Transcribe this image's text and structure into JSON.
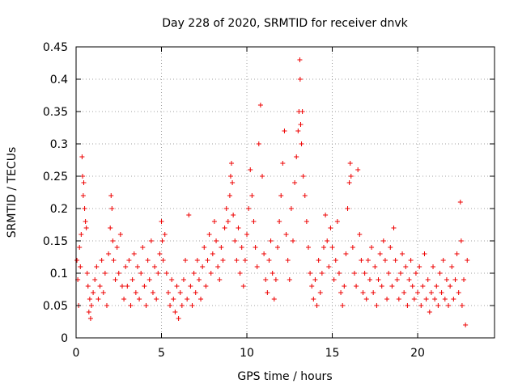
{
  "chart_data": {
    "type": "scatter",
    "title": "Day 228 of 2020, SRMTID for receiver dnvk",
    "xlabel": "GPS time / hours",
    "ylabel": "SRMTID / TECUs",
    "xlim": [
      0,
      24.5
    ],
    "ylim": [
      0,
      0.45
    ],
    "x_ticks": [
      "0",
      "5",
      "10",
      "15",
      "20"
    ],
    "x_tick_values": [
      0,
      5,
      10,
      15,
      20
    ],
    "y_ticks": [
      "0",
      "0.05",
      "0.1",
      "0.15",
      "0.2",
      "0.25",
      "0.3",
      "0.35",
      "0.4",
      "0.45"
    ],
    "y_tick_values": [
      0,
      0.05,
      0.1,
      0.15,
      0.2,
      0.25,
      0.3,
      0.35,
      0.4,
      0.45
    ],
    "grid": true,
    "marker": "+",
    "color": "#ee0000",
    "series": [
      {
        "name": "SRMTID",
        "points": [
          [
            0.05,
            0.12
          ],
          [
            0.1,
            0.09
          ],
          [
            0.15,
            0.05
          ],
          [
            0.2,
            0.14
          ],
          [
            0.25,
            0.11
          ],
          [
            0.3,
            0.16
          ],
          [
            0.35,
            0.28
          ],
          [
            0.38,
            0.25
          ],
          [
            0.42,
            0.22
          ],
          [
            0.45,
            0.24
          ],
          [
            0.5,
            0.2
          ],
          [
            0.55,
            0.18
          ],
          [
            0.6,
            0.17
          ],
          [
            0.65,
            0.1
          ],
          [
            0.7,
            0.08
          ],
          [
            0.75,
            0.04
          ],
          [
            0.8,
            0.06
          ],
          [
            0.85,
            0.03
          ],
          [
            0.9,
            0.05
          ],
          [
            1.0,
            0.07
          ],
          [
            1.1,
            0.09
          ],
          [
            1.2,
            0.11
          ],
          [
            1.3,
            0.06
          ],
          [
            1.4,
            0.08
          ],
          [
            1.5,
            0.12
          ],
          [
            1.6,
            0.07
          ],
          [
            1.7,
            0.1
          ],
          [
            1.8,
            0.05
          ],
          [
            1.9,
            0.13
          ],
          [
            2.0,
            0.17
          ],
          [
            2.05,
            0.22
          ],
          [
            2.1,
            0.2
          ],
          [
            2.15,
            0.15
          ],
          [
            2.2,
            0.12
          ],
          [
            2.3,
            0.09
          ],
          [
            2.4,
            0.14
          ],
          [
            2.5,
            0.1
          ],
          [
            2.6,
            0.16
          ],
          [
            2.7,
            0.08
          ],
          [
            2.8,
            0.06
          ],
          [
            2.9,
            0.11
          ],
          [
            3.0,
            0.08
          ],
          [
            3.1,
            0.12
          ],
          [
            3.2,
            0.05
          ],
          [
            3.3,
            0.09
          ],
          [
            3.4,
            0.13
          ],
          [
            3.5,
            0.07
          ],
          [
            3.6,
            0.11
          ],
          [
            3.7,
            0.06
          ],
          [
            3.8,
            0.1
          ],
          [
            3.9,
            0.14
          ],
          [
            4.0,
            0.08
          ],
          [
            4.1,
            0.05
          ],
          [
            4.2,
            0.12
          ],
          [
            4.3,
            0.09
          ],
          [
            4.4,
            0.15
          ],
          [
            4.5,
            0.07
          ],
          [
            4.6,
            0.11
          ],
          [
            4.7,
            0.06
          ],
          [
            4.8,
            0.1
          ],
          [
            4.9,
            0.13
          ],
          [
            5.0,
            0.18
          ],
          [
            5.05,
            0.15
          ],
          [
            5.1,
            0.12
          ],
          [
            5.2,
            0.16
          ],
          [
            5.3,
            0.1
          ],
          [
            5.4,
            0.07
          ],
          [
            5.5,
            0.05
          ],
          [
            5.6,
            0.09
          ],
          [
            5.7,
            0.06
          ],
          [
            5.8,
            0.04
          ],
          [
            5.9,
            0.08
          ],
          [
            6.0,
            0.03
          ],
          [
            6.1,
            0.07
          ],
          [
            6.2,
            0.05
          ],
          [
            6.3,
            0.09
          ],
          [
            6.4,
            0.12
          ],
          [
            6.5,
            0.06
          ],
          [
            6.6,
            0.19
          ],
          [
            6.7,
            0.08
          ],
          [
            6.8,
            0.05
          ],
          [
            6.9,
            0.1
          ],
          [
            7.0,
            0.07
          ],
          [
            7.1,
            0.12
          ],
          [
            7.2,
            0.09
          ],
          [
            7.3,
            0.06
          ],
          [
            7.4,
            0.11
          ],
          [
            7.5,
            0.14
          ],
          [
            7.6,
            0.08
          ],
          [
            7.7,
            0.12
          ],
          [
            7.8,
            0.16
          ],
          [
            7.9,
            0.1
          ],
          [
            8.0,
            0.13
          ],
          [
            8.1,
            0.18
          ],
          [
            8.2,
            0.15
          ],
          [
            8.3,
            0.11
          ],
          [
            8.4,
            0.09
          ],
          [
            8.5,
            0.14
          ],
          [
            8.6,
            0.12
          ],
          [
            8.7,
            0.17
          ],
          [
            8.8,
            0.2
          ],
          [
            8.9,
            0.18
          ],
          [
            9.0,
            0.22
          ],
          [
            9.05,
            0.25
          ],
          [
            9.1,
            0.27
          ],
          [
            9.15,
            0.24
          ],
          [
            9.2,
            0.19
          ],
          [
            9.3,
            0.15
          ],
          [
            9.4,
            0.12
          ],
          [
            9.5,
            0.17
          ],
          [
            9.6,
            0.1
          ],
          [
            9.7,
            0.14
          ],
          [
            9.8,
            0.08
          ],
          [
            9.9,
            0.12
          ],
          [
            10.0,
            0.16
          ],
          [
            10.1,
            0.2
          ],
          [
            10.2,
            0.26
          ],
          [
            10.3,
            0.22
          ],
          [
            10.4,
            0.18
          ],
          [
            10.5,
            0.14
          ],
          [
            10.6,
            0.11
          ],
          [
            10.7,
            0.3
          ],
          [
            10.8,
            0.36
          ],
          [
            10.9,
            0.25
          ],
          [
            11.0,
            0.13
          ],
          [
            11.1,
            0.09
          ],
          [
            11.2,
            0.07
          ],
          [
            11.3,
            0.12
          ],
          [
            11.4,
            0.15
          ],
          [
            11.5,
            0.1
          ],
          [
            11.6,
            0.06
          ],
          [
            11.7,
            0.09
          ],
          [
            11.8,
            0.14
          ],
          [
            11.9,
            0.18
          ],
          [
            12.0,
            0.22
          ],
          [
            12.1,
            0.27
          ],
          [
            12.2,
            0.32
          ],
          [
            12.3,
            0.16
          ],
          [
            12.4,
            0.12
          ],
          [
            12.5,
            0.09
          ],
          [
            12.6,
            0.2
          ],
          [
            12.7,
            0.15
          ],
          [
            12.8,
            0.24
          ],
          [
            12.9,
            0.28
          ],
          [
            13.0,
            0.32
          ],
          [
            13.05,
            0.35
          ],
          [
            13.1,
            0.43
          ],
          [
            13.12,
            0.4
          ],
          [
            13.15,
            0.33
          ],
          [
            13.2,
            0.3
          ],
          [
            13.25,
            0.35
          ],
          [
            13.3,
            0.25
          ],
          [
            13.4,
            0.22
          ],
          [
            13.5,
            0.18
          ],
          [
            13.6,
            0.14
          ],
          [
            13.7,
            0.1
          ],
          [
            13.8,
            0.08
          ],
          [
            13.9,
            0.06
          ],
          [
            14.0,
            0.09
          ],
          [
            14.1,
            0.05
          ],
          [
            14.2,
            0.12
          ],
          [
            14.3,
            0.07
          ],
          [
            14.4,
            0.1
          ],
          [
            14.5,
            0.14
          ],
          [
            14.6,
            0.19
          ],
          [
            14.7,
            0.15
          ],
          [
            14.8,
            0.11
          ],
          [
            14.9,
            0.17
          ],
          [
            15.0,
            0.14
          ],
          [
            15.1,
            0.09
          ],
          [
            15.2,
            0.12
          ],
          [
            15.3,
            0.18
          ],
          [
            15.4,
            0.1
          ],
          [
            15.5,
            0.07
          ],
          [
            15.6,
            0.05
          ],
          [
            15.7,
            0.08
          ],
          [
            15.8,
            0.13
          ],
          [
            15.9,
            0.2
          ],
          [
            16.0,
            0.24
          ],
          [
            16.05,
            0.27
          ],
          [
            16.1,
            0.25
          ],
          [
            16.2,
            0.14
          ],
          [
            16.3,
            0.1
          ],
          [
            16.4,
            0.08
          ],
          [
            16.5,
            0.26
          ],
          [
            16.6,
            0.16
          ],
          [
            16.7,
            0.12
          ],
          [
            16.8,
            0.07
          ],
          [
            16.9,
            0.1
          ],
          [
            17.0,
            0.06
          ],
          [
            17.1,
            0.12
          ],
          [
            17.2,
            0.09
          ],
          [
            17.3,
            0.14
          ],
          [
            17.4,
            0.07
          ],
          [
            17.5,
            0.11
          ],
          [
            17.6,
            0.05
          ],
          [
            17.7,
            0.09
          ],
          [
            17.8,
            0.13
          ],
          [
            17.9,
            0.08
          ],
          [
            18.0,
            0.15
          ],
          [
            18.1,
            0.12
          ],
          [
            18.2,
            0.06
          ],
          [
            18.3,
            0.1
          ],
          [
            18.4,
            0.14
          ],
          [
            18.5,
            0.08
          ],
          [
            18.6,
            0.17
          ],
          [
            18.7,
            0.12
          ],
          [
            18.8,
            0.09
          ],
          [
            18.9,
            0.06
          ],
          [
            19.0,
            0.1
          ],
          [
            19.1,
            0.13
          ],
          [
            19.2,
            0.07
          ],
          [
            19.3,
            0.11
          ],
          [
            19.4,
            0.05
          ],
          [
            19.5,
            0.09
          ],
          [
            19.6,
            0.12
          ],
          [
            19.7,
            0.08
          ],
          [
            19.8,
            0.06
          ],
          [
            19.9,
            0.1
          ],
          [
            20.0,
            0.07
          ],
          [
            20.1,
            0.11
          ],
          [
            20.2,
            0.05
          ],
          [
            20.3,
            0.08
          ],
          [
            20.4,
            0.13
          ],
          [
            20.5,
            0.06
          ],
          [
            20.6,
            0.09
          ],
          [
            20.7,
            0.04
          ],
          [
            20.8,
            0.07
          ],
          [
            20.9,
            0.11
          ],
          [
            21.0,
            0.06
          ],
          [
            21.1,
            0.08
          ],
          [
            21.2,
            0.05
          ],
          [
            21.3,
            0.1
          ],
          [
            21.4,
            0.07
          ],
          [
            21.5,
            0.12
          ],
          [
            21.6,
            0.06
          ],
          [
            21.7,
            0.09
          ],
          [
            21.8,
            0.05
          ],
          [
            21.9,
            0.08
          ],
          [
            22.0,
            0.11
          ],
          [
            22.1,
            0.06
          ],
          [
            22.2,
            0.09
          ],
          [
            22.3,
            0.13
          ],
          [
            22.4,
            0.07
          ],
          [
            22.5,
            0.21
          ],
          [
            22.55,
            0.15
          ],
          [
            22.6,
            0.05
          ],
          [
            22.7,
            0.09
          ],
          [
            22.8,
            0.02
          ],
          [
            22.9,
            0.12
          ]
        ]
      }
    ]
  }
}
